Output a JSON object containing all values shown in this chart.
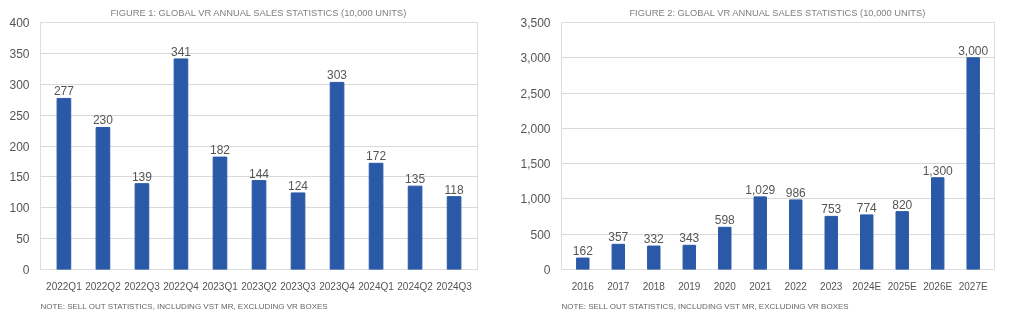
{
  "chart_data": [
    {
      "type": "bar",
      "title": "FIGURE 1: GLOBAL VR ANNUAL SALES STATISTICS (10,000 UNITS)",
      "categories": [
        "2022Q1",
        "2022Q2",
        "2022Q3",
        "2022Q4",
        "2023Q1",
        "2023Q2",
        "2023Q3",
        "2023Q4",
        "2024Q1",
        "2024Q2",
        "2024Q3"
      ],
      "values": [
        277,
        230,
        139,
        341,
        182,
        144,
        124,
        303,
        172,
        135,
        118
      ],
      "color": "#2a59a8",
      "ylim": [
        0,
        400
      ],
      "yticks": [
        0,
        50,
        100,
        150,
        200,
        250,
        300,
        350,
        400
      ],
      "grid": "y",
      "data_labels": true,
      "annotations": [
        "NOTE: SELL OUT STATISTICS, INCLUDING VST MR, EXCLUDING VR BOXES"
      ]
    },
    {
      "type": "bar",
      "title": "FIGURE 2: GLOBAL VR ANNUAL SALES STATISTICS (10,000 UNITS)",
      "categories": [
        "2016",
        "2017",
        "2018",
        "2019",
        "2020",
        "2021",
        "2022",
        "2023",
        "2024E",
        "2025E",
        "2026E",
        "2027E"
      ],
      "values": [
        162,
        357,
        332,
        343,
        598,
        1029,
        986,
        753,
        774,
        820,
        1300,
        3000
      ],
      "color": "#2a59a8",
      "ylim": [
        0,
        3500
      ],
      "yticks": [
        0,
        {
          "value": 500,
          "label": "500"
        },
        {
          "value": 1000,
          "label": "1,000"
        },
        {
          "value": 1500,
          "label": "1,500"
        },
        {
          "value": 2000,
          "label": "2,000"
        },
        {
          "value": 2500,
          "label": "2,500"
        },
        {
          "value": 3000,
          "label": "3,000"
        },
        {
          "value": 3500,
          "label": "3,500"
        }
      ],
      "grid": "y",
      "data_labels": true,
      "value_labels": [
        "162",
        "357",
        "332",
        "343",
        "598",
        "1,029",
        "986",
        "753",
        "774",
        "820",
        "1,300",
        "3,000"
      ],
      "annotations": [
        "NOTE: SELL OUT STATISTICS, INCLUDING VST MR, EXCLUDING VR BOXES"
      ]
    }
  ]
}
